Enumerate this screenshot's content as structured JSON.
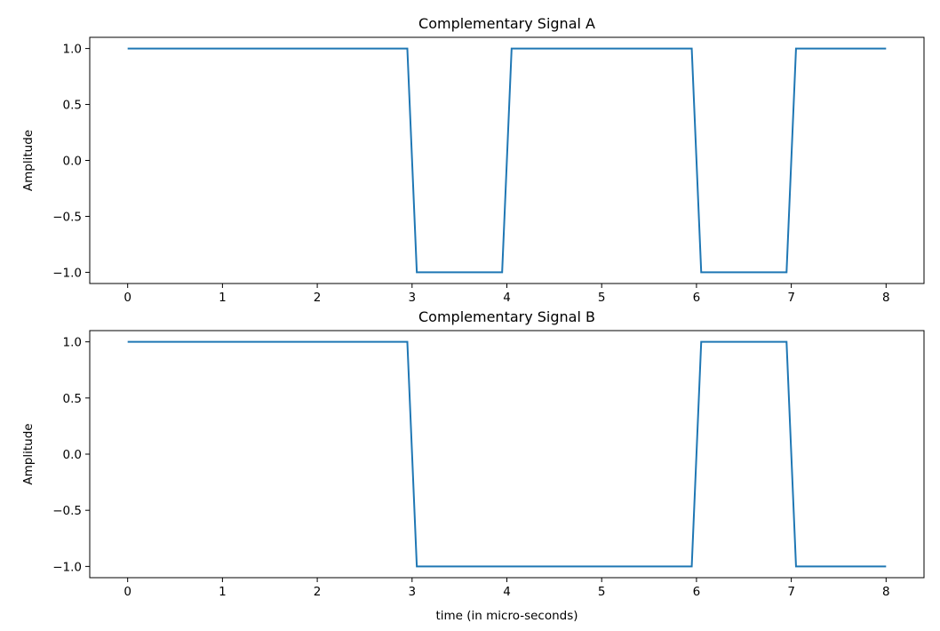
{
  "chart_data": [
    {
      "type": "line",
      "title": "Complementary Signal A",
      "xlabel": "",
      "ylabel": "Amplitude",
      "xlim": [
        -0.4,
        8.4
      ],
      "ylim": [
        -1.1,
        1.1
      ],
      "xticks": [
        0,
        1,
        2,
        3,
        4,
        5,
        6,
        7,
        8
      ],
      "xtick_labels": [
        "0",
        "1",
        "2",
        "3",
        "4",
        "5",
        "6",
        "7",
        "8"
      ],
      "yticks": [
        1.0,
        0.5,
        0.0,
        -0.5,
        -1.0
      ],
      "ytick_labels": [
        "1.0",
        "0.5",
        "0.0",
        "−0.5",
        "−1.0"
      ],
      "grid": false,
      "color": "#1f77b4",
      "series": [
        {
          "x": [
            0,
            2.95,
            3.05,
            3.95,
            4.05,
            5.95,
            6.05,
            6.95,
            7.05,
            8
          ],
          "y": [
            1,
            1,
            -1,
            -1,
            1,
            1,
            -1,
            -1,
            1,
            1
          ]
        }
      ]
    },
    {
      "type": "line",
      "title": "Complementary Signal B",
      "xlabel": "time (in micro-seconds)",
      "ylabel": "Amplitude",
      "xlim": [
        -0.4,
        8.4
      ],
      "ylim": [
        -1.1,
        1.1
      ],
      "xticks": [
        0,
        1,
        2,
        3,
        4,
        5,
        6,
        7,
        8
      ],
      "xtick_labels": [
        "0",
        "1",
        "2",
        "3",
        "4",
        "5",
        "6",
        "7",
        "8"
      ],
      "yticks": [
        1.0,
        0.5,
        0.0,
        -0.5,
        -1.0
      ],
      "ytick_labels": [
        "1.0",
        "0.5",
        "0.0",
        "−0.5",
        "−1.0"
      ],
      "grid": false,
      "color": "#1f77b4",
      "series": [
        {
          "x": [
            0,
            2.95,
            3.05,
            5.95,
            6.05,
            6.95,
            7.05,
            8
          ],
          "y": [
            1,
            1,
            -1,
            -1,
            1,
            1,
            -1,
            -1
          ]
        }
      ]
    }
  ]
}
